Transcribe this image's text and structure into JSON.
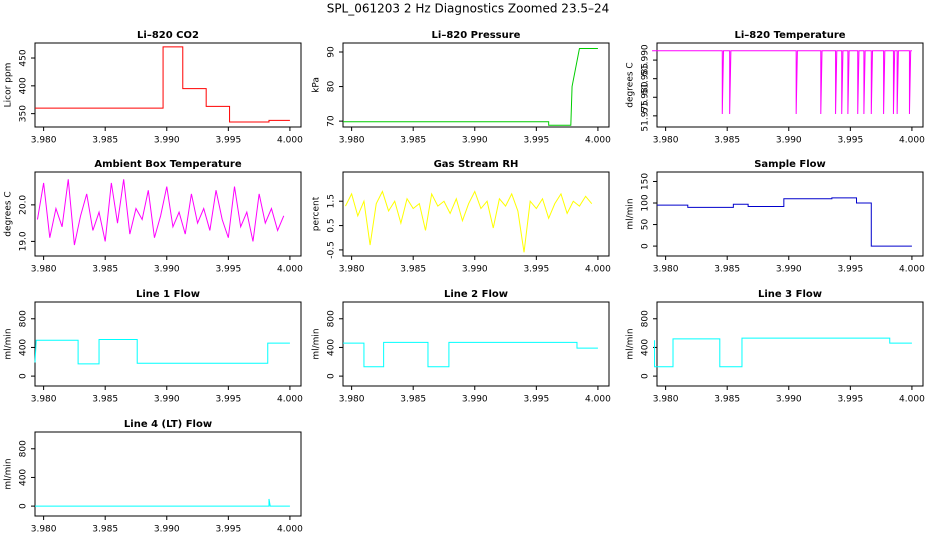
{
  "title": "SPL_061203  2 Hz Diagnostics Zoomed 23.5–24",
  "chart_data": [
    {
      "type": "line",
      "title": "Li–820 CO2",
      "ylabel": "Licor ppm",
      "color": "#ff0000",
      "xlim": [
        3.9793,
        4.0009
      ],
      "ylim": [
        326,
        477
      ],
      "xticks": [
        {
          "value": 3.98,
          "label": "3.980"
        },
        {
          "value": 3.985,
          "label": "3.985"
        },
        {
          "value": 3.99,
          "label": "3.990"
        },
        {
          "value": 3.995,
          "label": "3.995"
        },
        {
          "value": 4,
          "label": "4.000"
        }
      ],
      "yticks": [
        350,
        400,
        450
      ],
      "x": [
        3.9793,
        3.9897,
        3.9897,
        3.9913,
        3.9913,
        3.9932,
        3.9932,
        3.9951,
        3.9951,
        3.9983,
        3.9983,
        4.0
      ],
      "values": [
        360,
        360,
        470,
        470,
        395,
        395,
        363,
        363,
        335,
        335,
        338,
        338
      ]
    },
    {
      "type": "line",
      "title": "Li–820 Pressure",
      "ylabel": "kPa",
      "color": "#00cc00",
      "xlim": [
        3.9793,
        4.0009
      ],
      "ylim": [
        68.3,
        92.6
      ],
      "xticks": [
        {
          "value": 3.98,
          "label": "3.980"
        },
        {
          "value": 3.985,
          "label": "3.985"
        },
        {
          "value": 3.99,
          "label": "3.990"
        },
        {
          "value": 3.995,
          "label": "3.995"
        },
        {
          "value": 4,
          "label": "4.000"
        }
      ],
      "yticks": [
        70,
        80,
        90
      ],
      "x": [
        3.9793,
        3.996,
        3.996,
        3.9978,
        3.9979,
        3.9985,
        4.0
      ],
      "values": [
        69.8,
        69.8,
        68.8,
        68.8,
        80,
        91,
        91
      ]
    },
    {
      "type": "line",
      "title": "Li–820 Temperature",
      "ylabel": "degrees C",
      "color": "#ff00ff",
      "xlim": [
        3.9793,
        4.0009
      ],
      "ylim": [
        51.972,
        51.9946
      ],
      "xticks": [
        {
          "value": 3.98,
          "label": "3.980"
        },
        {
          "value": 3.985,
          "label": "3.985"
        },
        {
          "value": 3.99,
          "label": "3.990"
        },
        {
          "value": 3.995,
          "label": "3.995"
        },
        {
          "value": 4,
          "label": "4.000"
        }
      ],
      "yticks": [
        51.975,
        {
          "value": 51.98,
          "label": "51.980"
        },
        51.985,
        {
          "value": 51.99,
          "label": "51.990"
        }
      ],
      "x": [
        3.9789,
        3.9846,
        3.9846,
        3.9847,
        3.9852,
        3.9852,
        3.9853,
        3.9906,
        3.9906,
        3.9907,
        3.9926,
        3.9926,
        3.9927,
        3.9938,
        3.9938,
        3.9939,
        3.9943,
        3.9943,
        3.9944,
        3.9948,
        3.9948,
        3.9949,
        3.9956,
        3.9956,
        3.9957,
        3.9961,
        3.9961,
        3.9962,
        3.9967,
        3.9967,
        3.9968,
        3.9977,
        3.9977,
        3.9978,
        3.9985,
        3.9985,
        3.9986,
        3.9988,
        3.9988,
        3.9989,
        3.9998,
        3.9998,
        3.9999,
        4.0
      ],
      "values": [
        51.9925,
        51.9925,
        51.9755,
        51.9925,
        51.9925,
        51.9755,
        51.9925,
        51.9925,
        51.9755,
        51.9925,
        51.9925,
        51.9755,
        51.9925,
        51.9925,
        51.9755,
        51.9925,
        51.9925,
        51.9755,
        51.9925,
        51.9925,
        51.9755,
        51.9925,
        51.9925,
        51.9755,
        51.9925,
        51.9925,
        51.9755,
        51.9925,
        51.9925,
        51.9755,
        51.9925,
        51.9925,
        51.9755,
        51.9925,
        51.9925,
        51.9755,
        51.9925,
        51.9925,
        51.9755,
        51.9925,
        51.9925,
        51.9755,
        51.9925,
        51.9925
      ]
    },
    {
      "type": "line",
      "title": "Ambient Box Temperature",
      "ylabel": "degrees C",
      "color": "#ff00ff",
      "xlim": [
        3.9793,
        4.0009
      ],
      "ylim": [
        18.6,
        20.9
      ],
      "xticks": [
        {
          "value": 3.98,
          "label": "3.980"
        },
        {
          "value": 3.985,
          "label": "3.985"
        },
        {
          "value": 3.99,
          "label": "3.990"
        },
        {
          "value": 3.995,
          "label": "3.995"
        },
        {
          "value": 4,
          "label": "4.000"
        }
      ],
      "yticks": [
        {
          "value": 19,
          "label": "19.0"
        },
        {
          "value": 20,
          "label": "20.0"
        }
      ],
      "x": [
        3.9795,
        3.98,
        3.9805,
        3.981,
        3.9815,
        3.982,
        3.9825,
        3.983,
        3.9835,
        3.984,
        3.9845,
        3.985,
        3.9855,
        3.986,
        3.9865,
        3.987,
        3.9875,
        3.988,
        3.9885,
        3.989,
        3.9895,
        3.99,
        3.9905,
        3.991,
        3.9915,
        3.992,
        3.9925,
        3.993,
        3.9935,
        3.994,
        3.9945,
        3.995,
        3.9955,
        3.996,
        3.9965,
        3.997,
        3.9975,
        3.998,
        3.9985,
        3.999,
        3.9995
      ],
      "values": [
        19.6,
        20.6,
        19.1,
        19.9,
        19.4,
        20.7,
        18.9,
        19.7,
        20.3,
        19.3,
        19.8,
        19.0,
        20.6,
        19.5,
        20.7,
        19.2,
        19.9,
        19.6,
        20.4,
        19.1,
        19.7,
        20.5,
        19.4,
        19.8,
        19.2,
        20.3,
        19.5,
        19.9,
        19.3,
        20.4,
        19.6,
        19.1,
        20.5,
        19.4,
        19.8,
        19.0,
        20.3,
        19.5,
        19.9,
        19.3,
        19.7
      ]
    },
    {
      "type": "line",
      "title": "Gas Stream RH",
      "ylabel": "percent",
      "color": "#ffff00",
      "xlim": [
        3.9793,
        4.0009
      ],
      "ylim": [
        -0.75,
        2.7
      ],
      "xticks": [
        {
          "value": 3.98,
          "label": "3.980"
        },
        {
          "value": 3.985,
          "label": "3.985"
        },
        {
          "value": 3.99,
          "label": "3.990"
        },
        {
          "value": 3.995,
          "label": "3.995"
        },
        {
          "value": 4,
          "label": "4.000"
        }
      ],
      "yticks": [
        -0.5,
        0.5,
        1.5
      ],
      "x": [
        3.9795,
        3.98,
        3.9805,
        3.981,
        3.9815,
        3.982,
        3.9825,
        3.983,
        3.9835,
        3.984,
        3.9845,
        3.985,
        3.9855,
        3.986,
        3.9865,
        3.987,
        3.9875,
        3.988,
        3.9885,
        3.989,
        3.9895,
        3.99,
        3.9905,
        3.991,
        3.9915,
        3.992,
        3.9925,
        3.993,
        3.9935,
        3.994,
        3.9945,
        3.995,
        3.9955,
        3.996,
        3.9965,
        3.997,
        3.9975,
        3.998,
        3.9985,
        3.999,
        3.9995
      ],
      "values": [
        1.3,
        1.8,
        0.9,
        1.5,
        -0.3,
        1.4,
        1.9,
        1.1,
        1.5,
        0.6,
        1.6,
        1.2,
        1.4,
        0.3,
        1.8,
        1.3,
        1.5,
        1.0,
        1.6,
        0.7,
        1.4,
        1.9,
        1.2,
        1.5,
        0.4,
        1.6,
        1.3,
        1.8,
        1.1,
        -0.6,
        1.5,
        1.2,
        1.6,
        0.8,
        1.4,
        1.8,
        1.0,
        1.5,
        1.3,
        1.7,
        1.4
      ]
    },
    {
      "type": "line",
      "title": "Sample Flow",
      "ylabel": "ml/min",
      "color": "#0000cc",
      "xlim": [
        3.9793,
        4.0009
      ],
      "ylim": [
        -23,
        172
      ],
      "xticks": [
        {
          "value": 3.98,
          "label": "3.980"
        },
        {
          "value": 3.985,
          "label": "3.985"
        },
        {
          "value": 3.99,
          "label": "3.990"
        },
        {
          "value": 3.995,
          "label": "3.995"
        },
        {
          "value": 4,
          "label": "4.000"
        }
      ],
      "yticks": [
        0,
        50,
        100,
        150
      ],
      "x": [
        3.9793,
        3.9818,
        3.9818,
        3.9855,
        3.9855,
        3.9867,
        3.9867,
        3.9896,
        3.9896,
        3.9935,
        3.9935,
        3.9955,
        3.9955,
        3.9967,
        3.9967,
        4.0
      ],
      "values": [
        95,
        95,
        90,
        90,
        97,
        97,
        92,
        92,
        110,
        110,
        112,
        112,
        100,
        100,
        0,
        0
      ]
    },
    {
      "type": "line",
      "title": "Line 1 Flow",
      "ylabel": "ml/min",
      "color": "#00ffff",
      "xlim": [
        3.9793,
        4.0009
      ],
      "ylim": [
        -138,
        1034
      ],
      "xticks": [
        {
          "value": 3.98,
          "label": "3.980"
        },
        {
          "value": 3.985,
          "label": "3.985"
        },
        {
          "value": 3.99,
          "label": "3.990"
        },
        {
          "value": 3.995,
          "label": "3.995"
        },
        {
          "value": 4,
          "label": "4.000"
        }
      ],
      "yticks": [
        0,
        400,
        800
      ],
      "x": [
        3.9793,
        3.9794,
        3.9828,
        3.9828,
        3.9845,
        3.9845,
        3.9876,
        3.9876,
        3.9982,
        3.9982,
        4.0
      ],
      "values": [
        190,
        500,
        500,
        170,
        170,
        510,
        510,
        180,
        180,
        460,
        460
      ]
    },
    {
      "type": "line",
      "title": "Line 2 Flow",
      "ylabel": "ml/min",
      "color": "#00ffff",
      "xlim": [
        3.9793,
        4.0009
      ],
      "ylim": [
        -138,
        1034
      ],
      "xticks": [
        {
          "value": 3.98,
          "label": "3.980"
        },
        {
          "value": 3.985,
          "label": "3.985"
        },
        {
          "value": 3.99,
          "label": "3.990"
        },
        {
          "value": 3.995,
          "label": "3.995"
        },
        {
          "value": 4,
          "label": "4.000"
        }
      ],
      "yticks": [
        0,
        400,
        800
      ],
      "x": [
        3.9793,
        3.981,
        3.981,
        3.9826,
        3.9826,
        3.9862,
        3.9862,
        3.9879,
        3.9879,
        3.9983,
        3.9983,
        4.0
      ],
      "values": [
        460,
        460,
        130,
        130,
        470,
        470,
        130,
        130,
        470,
        470,
        390,
        390
      ]
    },
    {
      "type": "line",
      "title": "Line 3 Flow",
      "ylabel": "ml/min",
      "color": "#00ffff",
      "xlim": [
        3.9793,
        4.0009
      ],
      "ylim": [
        -138,
        1034
      ],
      "xticks": [
        {
          "value": 3.98,
          "label": "3.980"
        },
        {
          "value": 3.985,
          "label": "3.985"
        },
        {
          "value": 3.99,
          "label": "3.990"
        },
        {
          "value": 3.995,
          "label": "3.995"
        },
        {
          "value": 4,
          "label": "4.000"
        }
      ],
      "yticks": [
        0,
        400,
        800
      ],
      "x": [
        3.9791,
        3.9791,
        3.9806,
        3.9806,
        3.9844,
        3.9844,
        3.9862,
        3.9862,
        3.9982,
        3.9982,
        4.0
      ],
      "values": [
        500,
        130,
        130,
        520,
        520,
        130,
        130,
        530,
        530,
        460,
        460
      ]
    },
    {
      "type": "line",
      "title": "Line 4 (LT) Flow",
      "ylabel": "ml/min",
      "color": "#00ffff",
      "xlim": [
        3.9793,
        4.0009
      ],
      "ylim": [
        -138,
        1034
      ],
      "xticks": [
        {
          "value": 3.98,
          "label": "3.980"
        },
        {
          "value": 3.985,
          "label": "3.985"
        },
        {
          "value": 3.99,
          "label": "3.990"
        },
        {
          "value": 3.995,
          "label": "3.995"
        },
        {
          "value": 4,
          "label": "4.000"
        }
      ],
      "yticks": [
        0,
        400,
        800
      ],
      "x": [
        3.9793,
        3.9983,
        3.9983,
        3.9984,
        4.0
      ],
      "values": [
        0,
        0,
        100,
        0,
        0
      ]
    }
  ]
}
